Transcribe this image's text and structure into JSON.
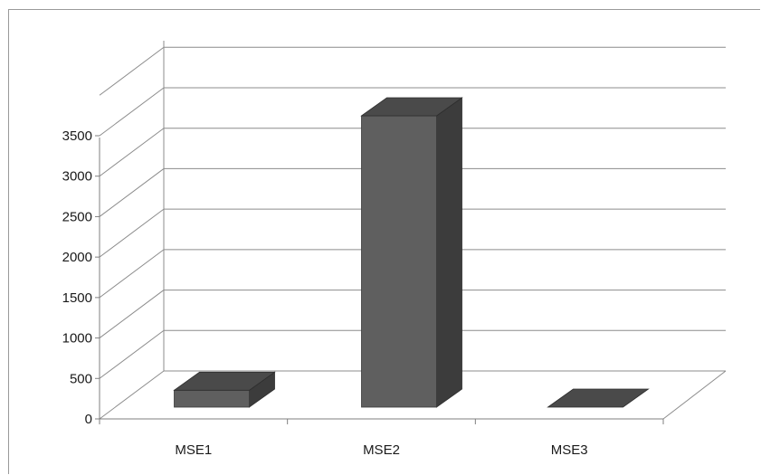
{
  "chart_data": {
    "type": "bar",
    "title": "",
    "xlabel": "",
    "ylabel": "",
    "categories": [
      "MSE1",
      "MSE2",
      "MSE3"
    ],
    "values": [
      180,
      3100,
      5
    ],
    "ylim": [
      0,
      3500
    ],
    "yticks": [
      0,
      500,
      1000,
      1500,
      2000,
      2500,
      3000,
      3500
    ],
    "grid": true,
    "legend": "none",
    "style": "3d-column",
    "colors": {
      "bar_front": "#5f5f5f",
      "bar_top": "#4a4a4a",
      "bar_side": "#3c3c3c",
      "grid": "#8c8c8c",
      "axis": "#7f7f7f"
    }
  }
}
